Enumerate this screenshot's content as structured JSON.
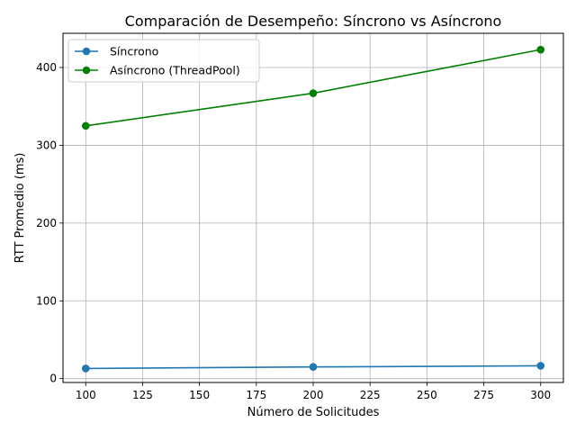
{
  "chart_data": {
    "type": "line",
    "title": "Comparación de Desempeño: Síncrono vs Asíncrono",
    "xlabel": "Número de Solicitudes",
    "ylabel": "RTT Promedio (ms)",
    "x": [
      100,
      200,
      300
    ],
    "xlim": [
      90,
      310
    ],
    "ylim": [
      -5,
      444
    ],
    "xticks": [
      100,
      125,
      150,
      175,
      200,
      225,
      250,
      275,
      300
    ],
    "yticks": [
      0,
      100,
      200,
      300,
      400
    ],
    "grid": true,
    "legend_position": "top-left",
    "series": [
      {
        "name": "Síncrono",
        "color": "#1f77b4",
        "marker": "circle",
        "values": [
          13,
          15,
          16.5
        ]
      },
      {
        "name": "Asíncrono (ThreadPool)",
        "color": "#008000",
        "marker": "circle",
        "values": [
          325,
          367,
          423
        ]
      }
    ]
  }
}
